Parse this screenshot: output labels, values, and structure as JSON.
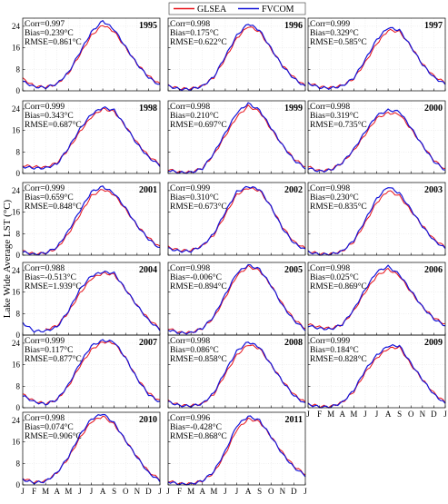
{
  "legend": {
    "items": [
      {
        "label": "GLSEA",
        "color": "#e8141b"
      },
      {
        "label": "FVCOM",
        "color": "#1414d8"
      }
    ]
  },
  "ylabel": "Lake Wide Average LST (°C)",
  "chart_data": {
    "type": "line",
    "x_ticks": [
      "J",
      "F",
      "M",
      "A",
      "M",
      "J",
      "J",
      "A",
      "S",
      "O",
      "N",
      "D",
      "J"
    ],
    "y_ticks": [
      0,
      8,
      16,
      24
    ],
    "ylim": [
      0,
      27
    ],
    "grid": true,
    "series_names": [
      "GLSEA",
      "FVCOM"
    ],
    "colors": {
      "GLSEA": "#e8141b",
      "FVCOM": "#1414d8"
    },
    "panels": [
      {
        "year": "1995",
        "corr": "Corr=0.997",
        "bias": "Bias=0.239°C",
        "rmse": "RMSE=0.861°C",
        "GLSEA": [
          4.5,
          1.8,
          1.4,
          2.5,
          6.5,
          13.5,
          20.5,
          24.5,
          22.0,
          16.0,
          10.0,
          5.5,
          2.5
        ],
        "FVCOM": [
          3.5,
          1.5,
          1.2,
          2.6,
          6.8,
          14.3,
          21.8,
          26.0,
          22.8,
          16.3,
          10.0,
          5.0,
          2.0
        ]
      },
      {
        "year": "1996",
        "corr": "Corr=0.998",
        "bias": "Bias=0.175°C",
        "rmse": "RMSE=0.622°C",
        "GLSEA": [
          2.0,
          0.8,
          0.8,
          1.8,
          5.0,
          12.0,
          19.5,
          24.0,
          22.0,
          15.5,
          9.5,
          5.0,
          1.8
        ],
        "FVCOM": [
          1.8,
          0.6,
          0.6,
          1.7,
          5.2,
          12.8,
          20.5,
          25.0,
          22.5,
          15.8,
          9.2,
          4.6,
          1.5
        ]
      },
      {
        "year": "1997",
        "corr": "Corr=0.999",
        "bias": "Bias=0.329°C",
        "rmse": "RMSE=0.585°C",
        "GLSEA": [
          3.0,
          1.5,
          1.2,
          2.0,
          4.5,
          10.5,
          17.5,
          22.5,
          22.0,
          16.5,
          10.0,
          5.5,
          3.0
        ],
        "FVCOM": [
          2.8,
          1.2,
          1.0,
          1.8,
          4.8,
          11.5,
          19.0,
          23.5,
          22.5,
          16.5,
          9.8,
          5.0,
          2.5
        ]
      },
      {
        "year": "1998",
        "corr": "Corr=0.999",
        "bias": "Bias=0.343°C",
        "rmse": "RMSE=0.687°C",
        "GLSEA": [
          3.0,
          2.5,
          2.3,
          4.0,
          9.0,
          15.5,
          21.0,
          24.0,
          23.0,
          17.5,
          11.5,
          6.5,
          3.5
        ],
        "FVCOM": [
          2.5,
          2.0,
          2.0,
          3.5,
          9.5,
          16.5,
          22.0,
          24.5,
          23.5,
          17.5,
          11.0,
          6.0,
          3.0
        ]
      },
      {
        "year": "1999",
        "corr": "Corr=0.998",
        "bias": "Bias=0.210°C",
        "rmse": "RMSE=0.697°C",
        "GLSEA": [
          1.5,
          0.5,
          0.5,
          2.0,
          7.0,
          14.0,
          21.0,
          25.0,
          23.0,
          16.5,
          10.5,
          5.5,
          2.5
        ],
        "FVCOM": [
          1.2,
          0.3,
          0.4,
          1.8,
          7.5,
          15.0,
          22.5,
          26.0,
          23.5,
          17.0,
          10.5,
          5.0,
          2.0
        ]
      },
      {
        "year": "2000",
        "corr": "Corr=0.998",
        "bias": "Bias=0.319°C",
        "rmse": "RMSE=0.735°C",
        "GLSEA": [
          2.5,
          1.0,
          1.5,
          4.0,
          8.5,
          14.5,
          20.5,
          22.5,
          22.0,
          16.5,
          10.5,
          5.0,
          1.5
        ],
        "FVCOM": [
          2.0,
          0.8,
          1.3,
          4.0,
          9.0,
          15.5,
          21.5,
          23.5,
          23.0,
          17.0,
          10.5,
          4.5,
          1.2
        ]
      },
      {
        "year": "2001",
        "corr": "Corr=0.999",
        "bias": "Bias=0.659°C",
        "rmse": "RMSE=0.848°C",
        "GLSEA": [
          1.5,
          0.5,
          0.8,
          2.5,
          8.0,
          15.0,
          22.0,
          24.5,
          22.5,
          17.0,
          11.0,
          6.5,
          3.0
        ],
        "FVCOM": [
          1.2,
          0.3,
          0.8,
          3.0,
          9.0,
          16.5,
          23.5,
          25.5,
          23.0,
          17.5,
          11.0,
          6.0,
          2.5
        ]
      },
      {
        "year": "2002",
        "corr": "Corr=0.999",
        "bias": "Bias=0.310°C",
        "rmse": "RMSE=0.673°C",
        "GLSEA": [
          3.0,
          1.8,
          1.8,
          3.5,
          7.5,
          15.0,
          22.5,
          25.0,
          24.0,
          18.0,
          10.5,
          5.0,
          2.5
        ],
        "FVCOM": [
          2.5,
          1.5,
          1.5,
          3.5,
          8.0,
          16.0,
          23.5,
          25.5,
          24.5,
          18.0,
          10.0,
          4.5,
          2.0
        ]
      },
      {
        "year": "2003",
        "corr": "Corr=0.998",
        "bias": "Bias=0.230°C",
        "rmse": "RMSE=0.835°C",
        "GLSEA": [
          1.5,
          0.5,
          0.5,
          1.5,
          5.0,
          12.0,
          19.5,
          24.0,
          22.0,
          16.5,
          11.0,
          6.0,
          3.0
        ],
        "FVCOM": [
          1.2,
          0.3,
          0.3,
          1.5,
          5.5,
          13.0,
          21.0,
          25.5,
          23.0,
          17.0,
          10.8,
          5.5,
          2.5
        ]
      },
      {
        "year": "2004",
        "corr": "Corr=0.988",
        "bias": "Bias=-0.513°C",
        "rmse": "RMSE=1.939°C",
        "GLSEA": [
          null,
          null,
          2.0,
          3.5,
          8.5,
          15.5,
          21.0,
          23.0,
          22.5,
          17.0,
          11.0,
          6.0,
          2.5
        ],
        "FVCOM": [
          4.5,
          1.5,
          1.5,
          3.0,
          9.0,
          17.0,
          22.0,
          23.5,
          23.0,
          17.0,
          11.0,
          5.5,
          2.0
        ]
      },
      {
        "year": "2005",
        "corr": "Corr=0.998",
        "bias": "Bias=-0.006°C",
        "rmse": "RMSE=0.894°C",
        "GLSEA": [
          2.5,
          1.0,
          1.0,
          2.5,
          6.5,
          14.0,
          22.0,
          25.5,
          24.0,
          18.5,
          11.5,
          6.0,
          2.5
        ],
        "FVCOM": [
          2.0,
          0.8,
          0.8,
          2.5,
          7.0,
          15.0,
          23.0,
          26.0,
          24.5,
          18.5,
          11.0,
          5.5,
          2.0
        ]
      },
      {
        "year": "2006",
        "corr": "Corr=0.998",
        "bias": "Bias=0.025°C",
        "rmse": "RMSE=0.869°C",
        "GLSEA": [
          4.0,
          3.0,
          2.5,
          4.0,
          9.0,
          16.0,
          22.0,
          24.5,
          22.0,
          16.0,
          10.5,
          6.5,
          4.0
        ],
        "FVCOM": [
          3.5,
          2.5,
          2.2,
          4.0,
          9.5,
          17.0,
          23.5,
          25.5,
          22.5,
          16.5,
          10.5,
          6.0,
          3.5
        ]
      },
      {
        "year": "2007",
        "corr": "Corr=0.999",
        "bias": "Bias=0.117°C",
        "rmse": "RMSE=0.877°C",
        "GLSEA": [
          5.0,
          2.5,
          1.5,
          3.0,
          8.0,
          15.5,
          21.5,
          24.5,
          24.0,
          18.5,
          11.0,
          5.5,
          2.5
        ],
        "FVCOM": [
          4.5,
          2.2,
          1.3,
          3.0,
          8.5,
          16.5,
          23.0,
          25.0,
          24.5,
          18.5,
          10.8,
          5.0,
          2.0
        ]
      },
      {
        "year": "2008",
        "corr": "Corr=0.998",
        "bias": "Bias=0.086°C",
        "rmse": "RMSE=0.858°C",
        "GLSEA": [
          2.5,
          1.0,
          0.8,
          1.5,
          5.0,
          12.5,
          19.5,
          23.5,
          22.0,
          16.0,
          10.0,
          5.0,
          2.0
        ],
        "FVCOM": [
          2.2,
          0.8,
          0.6,
          1.5,
          5.5,
          13.5,
          21.0,
          24.5,
          22.5,
          16.0,
          9.8,
          4.5,
          1.5
        ]
      },
      {
        "year": "2009",
        "corr": "Corr=0.999",
        "bias": "Bias=0.184°C",
        "rmse": "RMSE=0.828°C",
        "GLSEA": [
          1.5,
          0.5,
          0.5,
          2.0,
          6.0,
          13.0,
          18.5,
          22.0,
          22.5,
          16.0,
          10.5,
          5.5,
          2.0
        ],
        "FVCOM": [
          1.2,
          0.3,
          0.3,
          2.0,
          6.5,
          14.0,
          19.5,
          23.0,
          23.0,
          16.5,
          10.5,
          5.0,
          1.5
        ]
      },
      {
        "year": "2010",
        "corr": "Corr=0.998",
        "bias": "Bias=0.074°C",
        "rmse": "RMSE=0.906°C",
        "GLSEA": [
          2.5,
          1.0,
          1.5,
          4.5,
          10.0,
          17.5,
          23.5,
          25.5,
          22.5,
          16.5,
          10.5,
          5.0,
          2.0
        ],
        "FVCOM": [
          2.0,
          0.8,
          1.3,
          4.5,
          10.5,
          18.5,
          24.5,
          26.5,
          23.0,
          16.5,
          10.3,
          4.5,
          1.5
        ]
      },
      {
        "year": "2011",
        "corr": "Corr=0.996",
        "bias": "Bias=-0.428°C",
        "rmse": "RMSE=0.868°C",
        "GLSEA": [
          1.5,
          0.5,
          0.5,
          1.5,
          4.5,
          11.5,
          20.5,
          24.5,
          23.5,
          18.0,
          12.0,
          7.0,
          4.0
        ],
        "FVCOM": [
          1.2,
          0.3,
          0.3,
          1.5,
          5.0,
          12.5,
          22.0,
          25.5,
          24.0,
          18.0,
          11.5,
          6.5,
          3.5
        ]
      }
    ]
  }
}
